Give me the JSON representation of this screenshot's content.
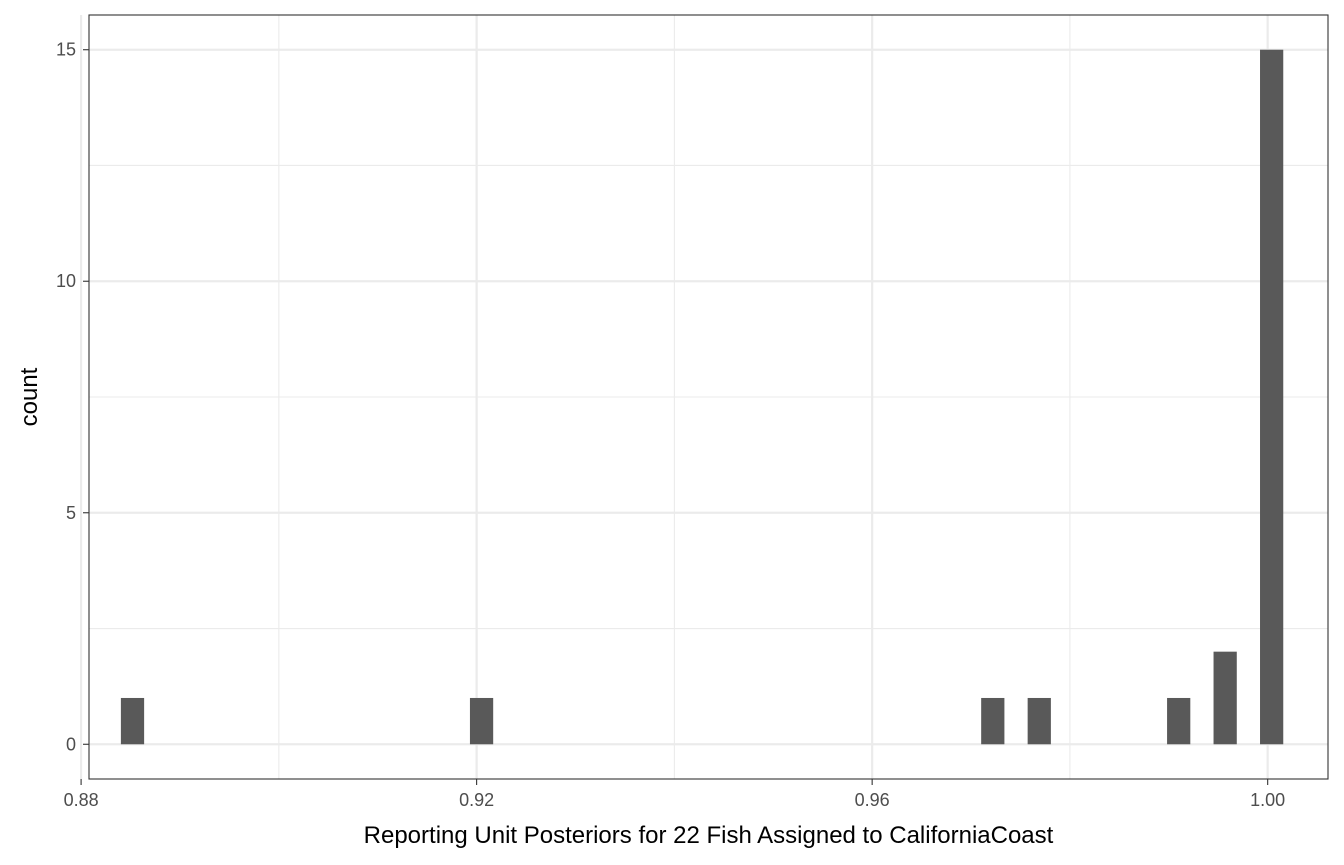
{
  "chart_data": {
    "type": "bar",
    "title": "",
    "xlabel": "Reporting Unit Posteriors for 22 Fish Assigned to CaliforniaCoast",
    "ylabel": "count",
    "xlim": [
      0.8808,
      1.0061
    ],
    "ylim": [
      -0.75,
      15.75
    ],
    "x_ticks": [
      0.88,
      0.92,
      0.96,
      1.0
    ],
    "x_tick_labels": [
      "0.88",
      "0.92",
      "0.96",
      "1.00"
    ],
    "x_minor_ticks": [
      0.9,
      0.94,
      0.98
    ],
    "y_ticks": [
      0,
      5,
      10,
      15
    ],
    "y_tick_labels": [
      "0",
      "5",
      "10",
      "15"
    ],
    "y_minor_ticks": [
      2.5,
      7.5,
      12.5
    ],
    "bin_width": 0.00235,
    "bins": [
      {
        "x": 0.8852,
        "count": 1
      },
      {
        "x": 0.9205,
        "count": 1
      },
      {
        "x": 0.9722,
        "count": 1
      },
      {
        "x": 0.9769,
        "count": 1
      },
      {
        "x": 0.991,
        "count": 1
      },
      {
        "x": 0.9957,
        "count": 2
      },
      {
        "x": 1.0004,
        "count": 15
      }
    ],
    "bar_color": "#595959",
    "grid": true,
    "grid_color": "#ebebeb",
    "panel_border_color": "#333333",
    "legend": "none"
  }
}
